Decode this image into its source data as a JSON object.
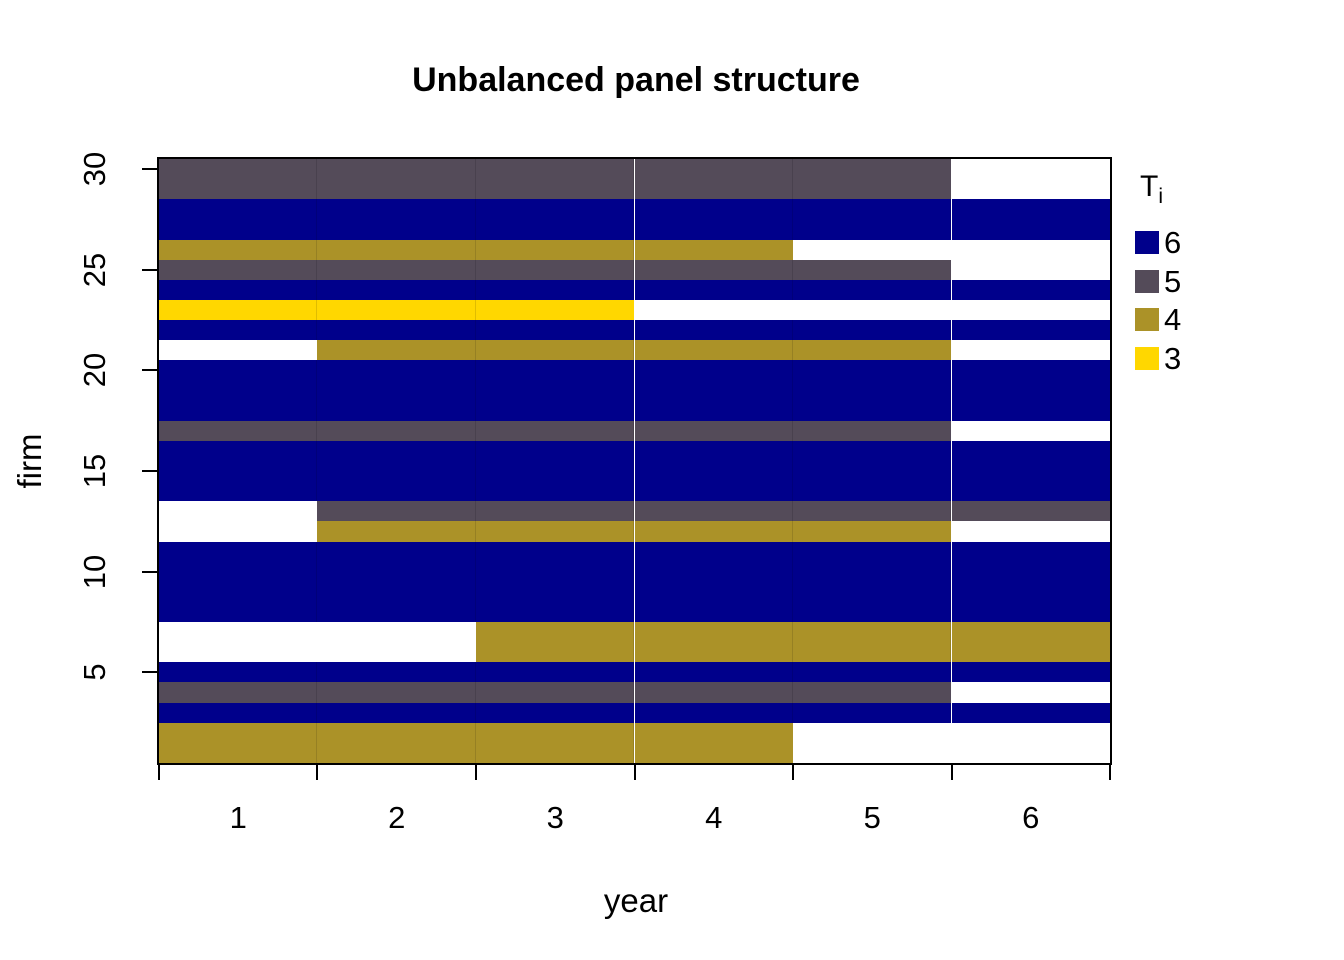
{
  "title": "Unbalanced panel structure",
  "x_axis": {
    "label": "year",
    "tick_labels": [
      "1",
      "2",
      "3",
      "4",
      "5",
      "6"
    ]
  },
  "y_axis": {
    "label": "firm",
    "tick_labels": [
      "5",
      "10",
      "15",
      "20",
      "25",
      "30"
    ]
  },
  "legend": {
    "title": "T",
    "title_subscript": "i",
    "items": [
      {
        "label": "6",
        "color": "#00008B"
      },
      {
        "label": "5",
        "color": "#544B59"
      },
      {
        "label": "4",
        "color": "#AB9228"
      },
      {
        "label": "3",
        "color": "#FFD700"
      }
    ]
  },
  "chart_data": {
    "type": "heatmap",
    "title": "Unbalanced panel structure",
    "xlabel": "year",
    "ylabel": "firm",
    "x_range": [
      0.5,
      6.5
    ],
    "y_range": [
      0.5,
      30.5
    ],
    "n_years": 6,
    "n_firms": 30,
    "x_tick_positions": [
      0.5,
      1.5,
      2.5,
      3.5,
      4.5,
      5.5,
      6.5
    ],
    "x_label_positions": [
      1,
      2,
      3,
      4,
      5,
      6
    ],
    "y_tick_positions": [
      5,
      10,
      15,
      20,
      25,
      30
    ],
    "grid": false,
    "legend_title": "Ti",
    "legend_position": "right",
    "colors": {
      "6": "#00008B",
      "5": "#544B59",
      "4": "#AB9228",
      "3": "#FFD700"
    },
    "firms": [
      {
        "firm": 1,
        "Ti": 4,
        "start_year": 1,
        "end_year": 4
      },
      {
        "firm": 2,
        "Ti": 4,
        "start_year": 1,
        "end_year": 4
      },
      {
        "firm": 3,
        "Ti": 6,
        "start_year": 1,
        "end_year": 6
      },
      {
        "firm": 4,
        "Ti": 5,
        "start_year": 1,
        "end_year": 5
      },
      {
        "firm": 5,
        "Ti": 6,
        "start_year": 1,
        "end_year": 6
      },
      {
        "firm": 6,
        "Ti": 4,
        "start_year": 3,
        "end_year": 6
      },
      {
        "firm": 7,
        "Ti": 4,
        "start_year": 3,
        "end_year": 6
      },
      {
        "firm": 8,
        "Ti": 6,
        "start_year": 1,
        "end_year": 6
      },
      {
        "firm": 9,
        "Ti": 6,
        "start_year": 1,
        "end_year": 6
      },
      {
        "firm": 10,
        "Ti": 6,
        "start_year": 1,
        "end_year": 6
      },
      {
        "firm": 11,
        "Ti": 6,
        "start_year": 1,
        "end_year": 6
      },
      {
        "firm": 12,
        "Ti": 4,
        "start_year": 2,
        "end_year": 5
      },
      {
        "firm": 13,
        "Ti": 5,
        "start_year": 2,
        "end_year": 6
      },
      {
        "firm": 14,
        "Ti": 6,
        "start_year": 1,
        "end_year": 6
      },
      {
        "firm": 15,
        "Ti": 6,
        "start_year": 1,
        "end_year": 6
      },
      {
        "firm": 16,
        "Ti": 6,
        "start_year": 1,
        "end_year": 6
      },
      {
        "firm": 17,
        "Ti": 5,
        "start_year": 1,
        "end_year": 5
      },
      {
        "firm": 18,
        "Ti": 6,
        "start_year": 1,
        "end_year": 6
      },
      {
        "firm": 19,
        "Ti": 6,
        "start_year": 1,
        "end_year": 6
      },
      {
        "firm": 20,
        "Ti": 6,
        "start_year": 1,
        "end_year": 6
      },
      {
        "firm": 21,
        "Ti": 4,
        "start_year": 2,
        "end_year": 5
      },
      {
        "firm": 22,
        "Ti": 6,
        "start_year": 1,
        "end_year": 6
      },
      {
        "firm": 23,
        "Ti": 3,
        "start_year": 1,
        "end_year": 3
      },
      {
        "firm": 24,
        "Ti": 6,
        "start_year": 1,
        "end_year": 6
      },
      {
        "firm": 25,
        "Ti": 5,
        "start_year": 1,
        "end_year": 5
      },
      {
        "firm": 26,
        "Ti": 4,
        "start_year": 1,
        "end_year": 4
      },
      {
        "firm": 27,
        "Ti": 6,
        "start_year": 1,
        "end_year": 6
      },
      {
        "firm": 28,
        "Ti": 6,
        "start_year": 1,
        "end_year": 6
      },
      {
        "firm": 29,
        "Ti": 5,
        "start_year": 1,
        "end_year": 5
      },
      {
        "firm": 30,
        "Ti": 5,
        "start_year": 1,
        "end_year": 5
      }
    ]
  }
}
